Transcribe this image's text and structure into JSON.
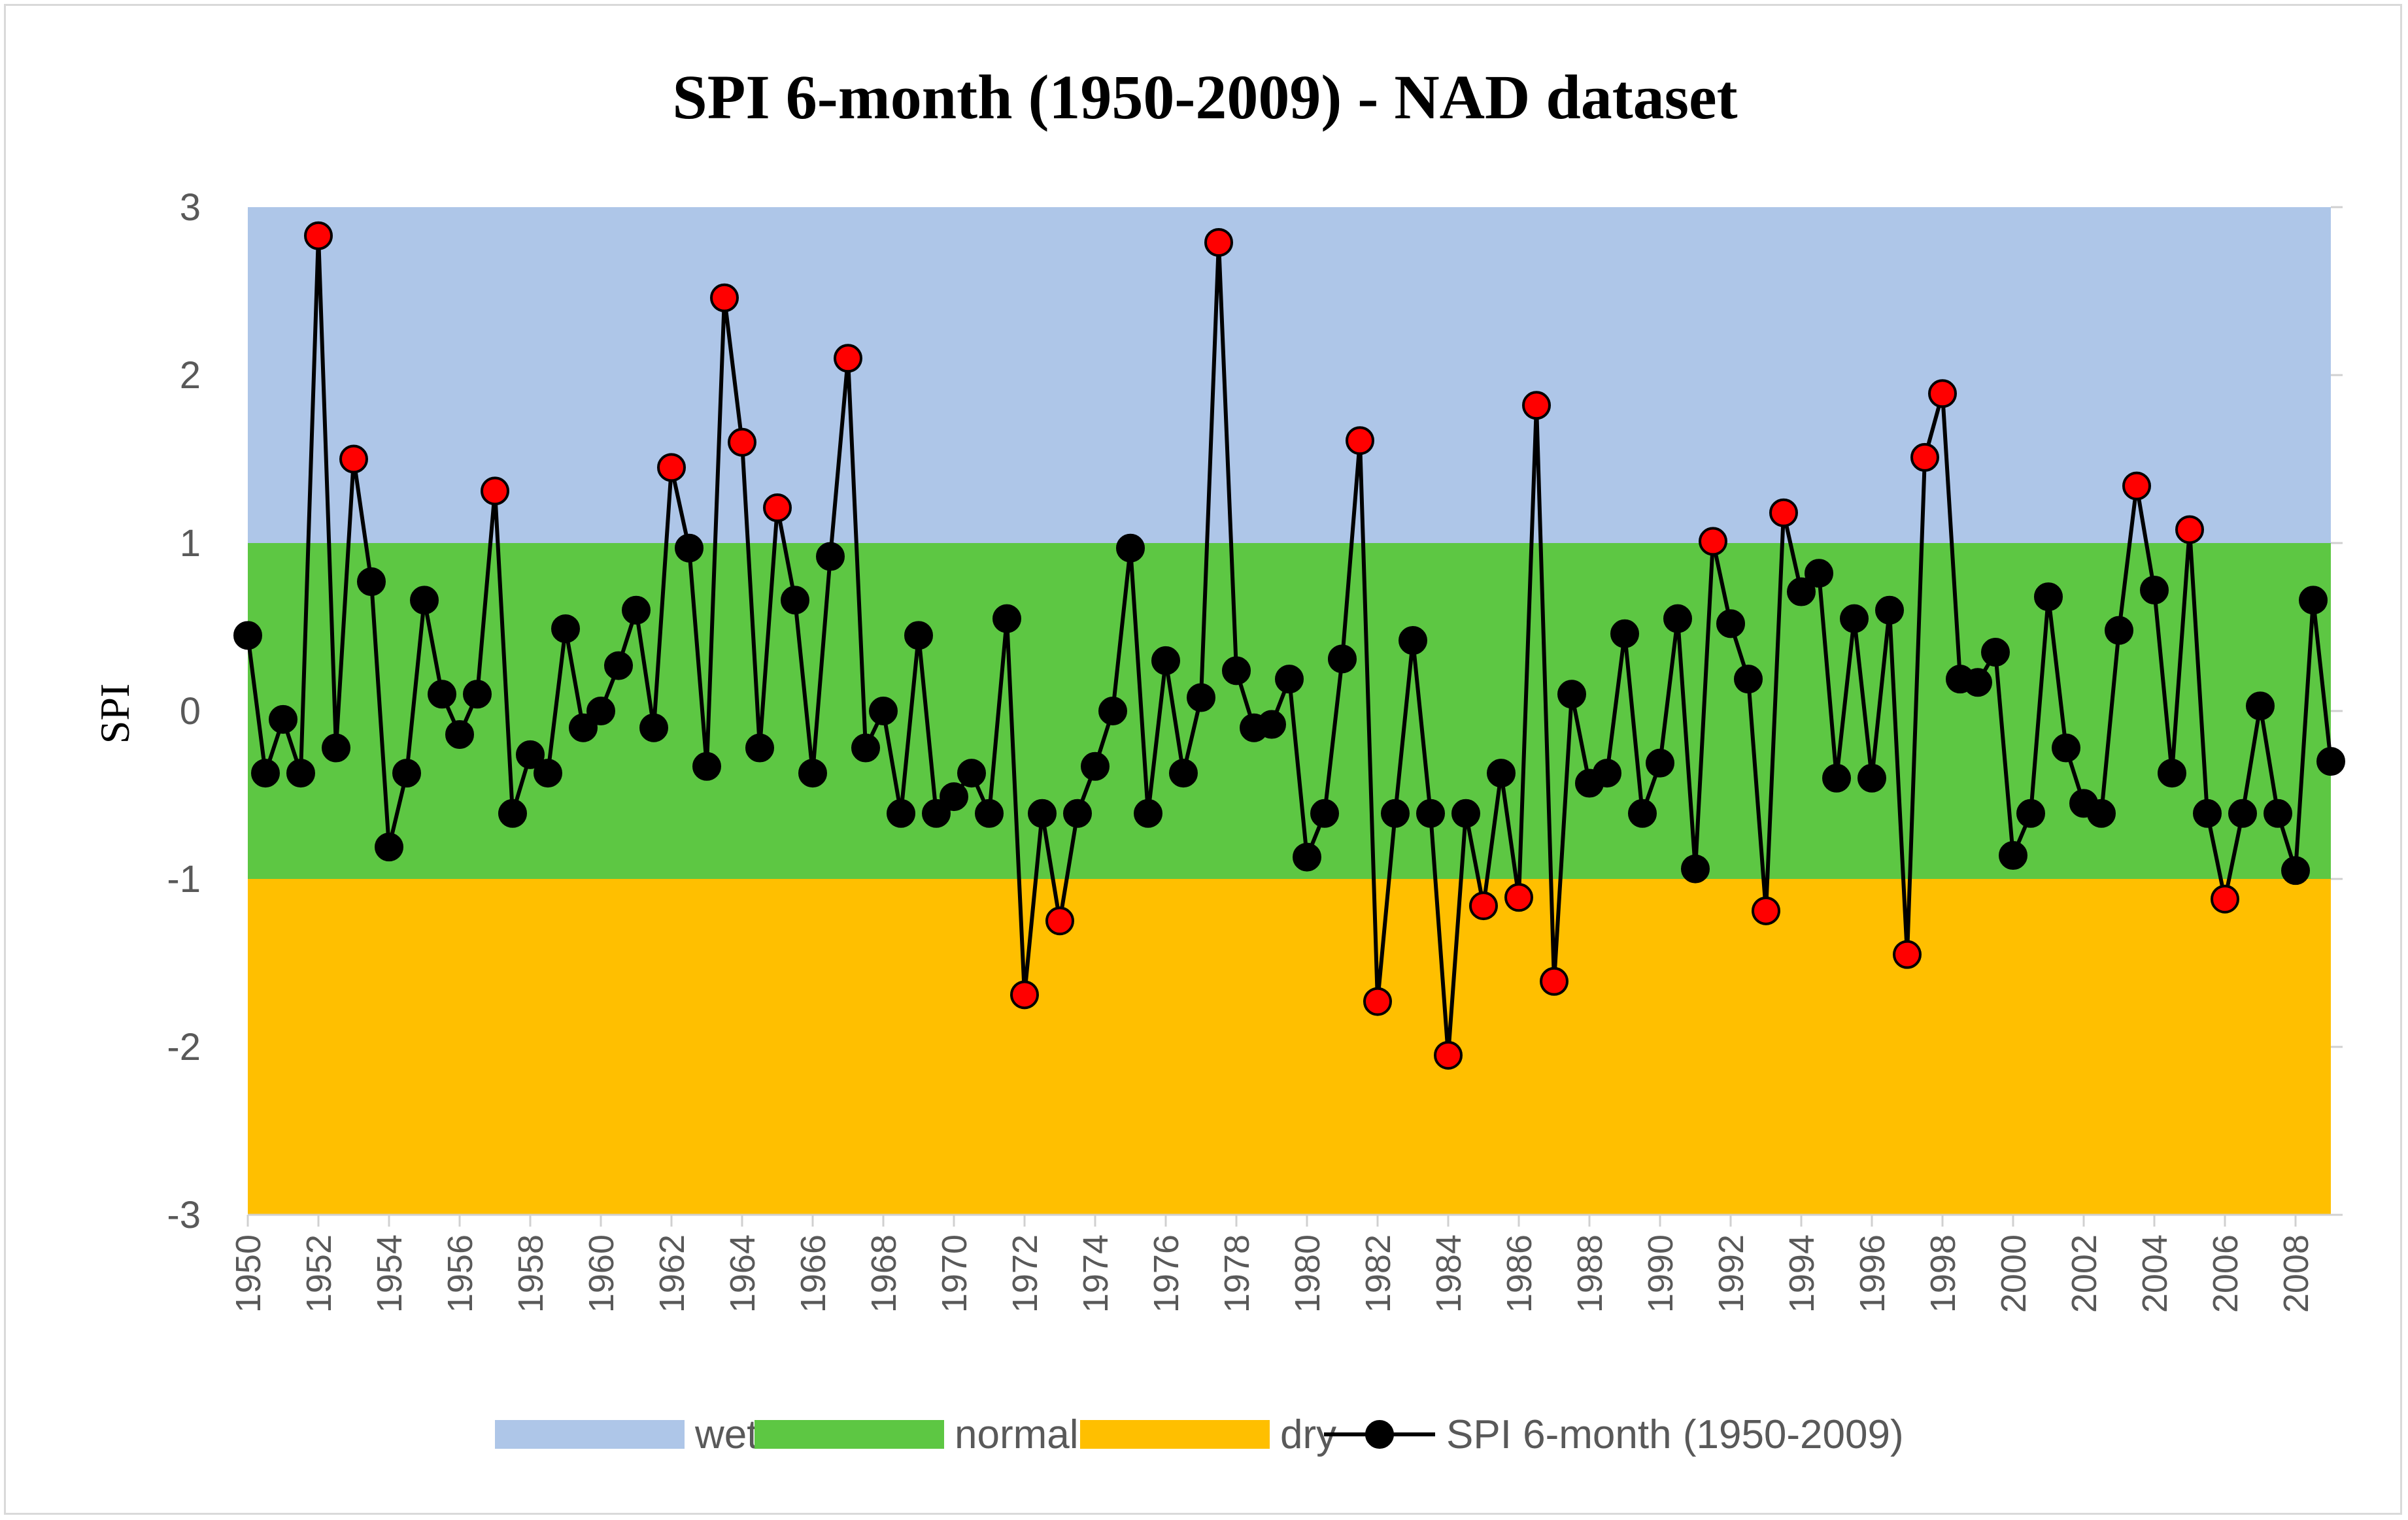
{
  "chart_data": {
    "type": "line",
    "title": "SPI 6-month (1950-2009) - NAD dataset",
    "xlabel": "",
    "ylabel": "SPI",
    "ylim": [
      -3,
      3
    ],
    "yticks": [
      3,
      2,
      1,
      0,
      -1,
      -2,
      -3
    ],
    "year_start": 1950,
    "year_end": 2009,
    "xtick_labels": [
      "1950",
      "1952",
      "1954",
      "1956",
      "1958",
      "1960",
      "1962",
      "1964",
      "1966",
      "1968",
      "1970",
      "1972",
      "1974",
      "1976",
      "1978",
      "1980",
      "1982",
      "1984",
      "1986",
      "1988",
      "1990",
      "1992",
      "1994",
      "1996",
      "1998",
      "2000",
      "2002",
      "2004",
      "2006",
      "2008"
    ],
    "bands": [
      {
        "name": "wet",
        "from": 1,
        "to": 3,
        "color": "#aec6e8"
      },
      {
        "name": "normal",
        "from": -1,
        "to": 1,
        "color": "#5dc743"
      },
      {
        "name": "dry",
        "from": -3,
        "to": -1,
        "color": "#ffbf00"
      }
    ],
    "series": [
      {
        "name": "SPI 6-month (1950-2009)",
        "line_color": "#000000",
        "marker_color": "#000000",
        "extreme_marker_color": "#ff0000",
        "values": [
          0.45,
          -0.37,
          -0.05,
          -0.37,
          2.83,
          -0.22,
          1.5,
          0.77,
          -0.81,
          -0.37,
          0.66,
          0.1,
          -0.14,
          0.1,
          1.31,
          -0.61,
          -0.26,
          -0.37,
          0.49,
          -0.1,
          0,
          0.27,
          0.6,
          -0.1,
          1.45,
          0.97,
          -0.33,
          2.46,
          1.6,
          -0.22,
          1.21,
          0.66,
          -0.37,
          0.92,
          2.1,
          -0.22,
          0,
          -0.61,
          0.45,
          -0.61,
          -0.51,
          -0.37,
          -0.61,
          0.55,
          -1.69,
          -0.61,
          -1.25,
          -0.61,
          -0.33,
          0,
          0.97,
          -0.61,
          0.3,
          -0.37,
          0.08,
          2.79,
          0.24,
          -0.1,
          -0.08,
          0.19,
          -0.87,
          -0.61,
          0.31,
          1.61,
          -1.73,
          -0.61,
          0.42,
          -0.61,
          -2.05,
          -0.61,
          -1.16,
          -0.37,
          -1.11,
          1.82,
          -1.61,
          0.1,
          -0.43,
          -0.37,
          0.46,
          -0.61,
          -0.31,
          0.55,
          -0.94,
          1.01,
          0.52,
          0.19,
          -1.19,
          1.18,
          0.71,
          0.82,
          -0.4,
          0.55,
          -0.4,
          0.6,
          -1.45,
          1.51,
          1.89,
          0.19,
          0.17,
          0.35,
          -0.86,
          -0.61,
          0.68,
          -0.22,
          -0.55,
          -0.61,
          0.48,
          1.34,
          0.72,
          -0.37,
          1.08,
          -0.61,
          -1.12,
          -0.61,
          0.03,
          -0.61,
          -0.95,
          0.66,
          -0.3
        ]
      }
    ],
    "legend": {
      "position": "bottom",
      "items": [
        "wet",
        "normal",
        "dry",
        "SPI 6-month (1950-2009)"
      ]
    }
  }
}
